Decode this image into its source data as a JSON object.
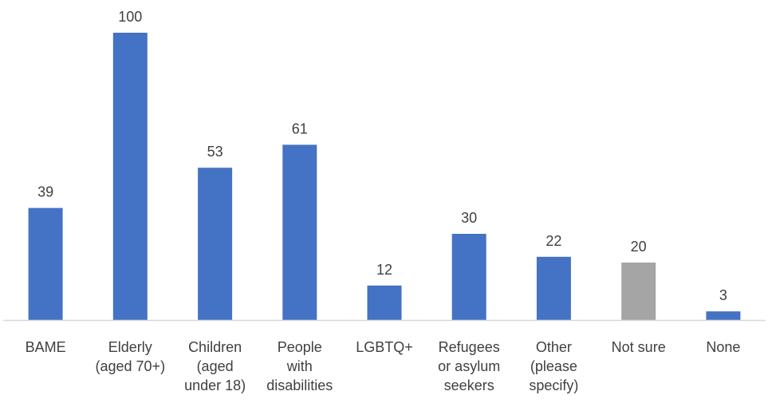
{
  "chart_data": {
    "type": "bar",
    "title": "",
    "xlabel": "",
    "ylabel": "",
    "ylim": [
      0,
      100
    ],
    "grid": false,
    "legend": "none",
    "categories": [
      [
        "BAME"
      ],
      [
        "Elderly",
        "(aged 70+)"
      ],
      [
        "Children",
        "(aged",
        "under 18)"
      ],
      [
        "People",
        "with",
        "disabilities"
      ],
      [
        "LGBTQ+"
      ],
      [
        "Refugees",
        "or asylum",
        "seekers"
      ],
      [
        "Other",
        "(please",
        "specify)"
      ],
      [
        "Not sure"
      ],
      [
        "None"
      ]
    ],
    "values": [
      39,
      100,
      53,
      61,
      12,
      30,
      22,
      20,
      3
    ],
    "bar_colors": [
      "#4472C4",
      "#4472C4",
      "#4472C4",
      "#4472C4",
      "#4472C4",
      "#4472C4",
      "#4472C4",
      "#A5A5A5",
      "#4472C4"
    ],
    "axis_color": "#D9D9D9",
    "label_color": "#404040"
  }
}
